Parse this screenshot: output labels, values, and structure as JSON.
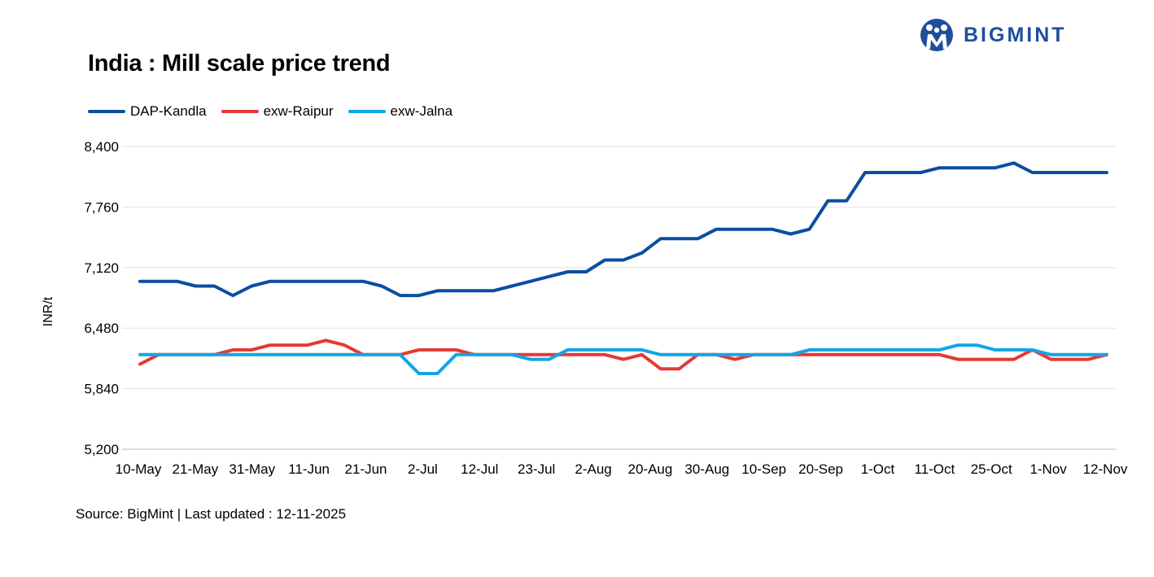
{
  "brand": {
    "name": "BIGMINT",
    "color": "#1f4e9c"
  },
  "title": "India : Mill scale price trend",
  "source": "Source: BigMint | Last updated : 12-11-2025",
  "chart_data": {
    "type": "line",
    "ylabel": "INR/t",
    "xlabel": "",
    "ylim": [
      5200,
      8400
    ],
    "yticks": [
      "5,200",
      "5,840",
      "6,480",
      "7,120",
      "7,760",
      "8,400"
    ],
    "grid": "horizontal",
    "legend_position": "top-left",
    "x_tick_labels": [
      "10-May",
      "21-May",
      "31-May",
      "11-Jun",
      "21-Jun",
      "2-Jul",
      "12-Jul",
      "23-Jul",
      "2-Aug",
      "20-Aug",
      "30-Aug",
      "10-Sep",
      "20-Sep",
      "1-Oct",
      "11-Oct",
      "25-Oct",
      "1-Nov",
      "12-Nov"
    ],
    "series": [
      {
        "name": "DAP-Kandla",
        "color": "#0b4ea2",
        "values": [
          6975,
          6975,
          6975,
          6925,
          6925,
          6825,
          6925,
          6975,
          6975,
          6975,
          6975,
          6975,
          6975,
          6925,
          6825,
          6825,
          6875,
          6875,
          6875,
          6875,
          6925,
          6975,
          7025,
          7075,
          7075,
          7200,
          7200,
          7275,
          7425,
          7425,
          7425,
          7525,
          7525,
          7525,
          7525,
          7475,
          7525,
          7825,
          7825,
          8125,
          8125,
          8125,
          8125,
          8175,
          8175,
          8175,
          8175,
          8225,
          8125,
          8125,
          8125,
          8125,
          8125
        ]
      },
      {
        "name": "exw-Raipur",
        "color": "#e53935",
        "values": [
          6100,
          6200,
          6200,
          6200,
          6200,
          6250,
          6250,
          6300,
          6300,
          6300,
          6350,
          6300,
          6200,
          6200,
          6200,
          6250,
          6250,
          6250,
          6200,
          6200,
          6200,
          6200,
          6200,
          6200,
          6200,
          6200,
          6150,
          6200,
          6050,
          6050,
          6200,
          6200,
          6150,
          6200,
          6200,
          6200,
          6200,
          6200,
          6200,
          6200,
          6200,
          6200,
          6200,
          6200,
          6150,
          6150,
          6150,
          6150,
          6250,
          6150,
          6150,
          6150,
          6200
        ]
      },
      {
        "name": "exw-Jalna",
        "color": "#14a4e6",
        "values": [
          6200,
          6200,
          6200,
          6200,
          6200,
          6200,
          6200,
          6200,
          6200,
          6200,
          6200,
          6200,
          6200,
          6200,
          6200,
          6000,
          6000,
          6200,
          6200,
          6200,
          6200,
          6150,
          6150,
          6250,
          6250,
          6250,
          6250,
          6250,
          6200,
          6200,
          6200,
          6200,
          6200,
          6200,
          6200,
          6200,
          6250,
          6250,
          6250,
          6250,
          6250,
          6250,
          6250,
          6250,
          6300,
          6300,
          6250,
          6250,
          6250,
          6200,
          6200,
          6200,
          6200
        ]
      }
    ]
  }
}
